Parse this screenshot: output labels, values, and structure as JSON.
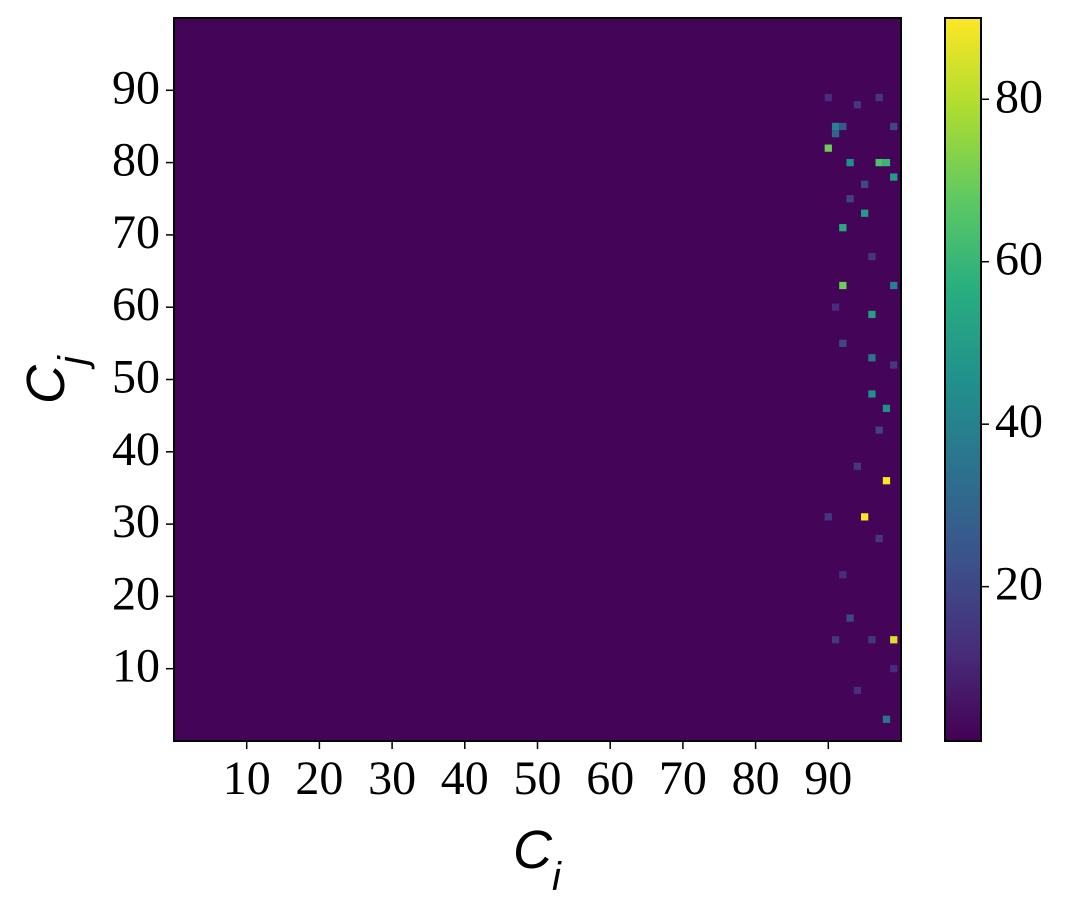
{
  "chart_data": {
    "type": "heatmap",
    "xlabel": "C_i",
    "ylabel": "C_j",
    "xlim": [
      0,
      100
    ],
    "ylim": [
      0,
      100
    ],
    "xticks": [
      10,
      20,
      30,
      40,
      50,
      60,
      70,
      80,
      90
    ],
    "yticks": [
      10,
      20,
      30,
      40,
      50,
      60,
      70,
      80,
      90
    ],
    "colormap": "viridis",
    "clim": [
      1,
      90
    ],
    "cbar_ticks": [
      20,
      40,
      60,
      80
    ],
    "background": 2,
    "cells": [
      [
        99,
        14,
        85
      ],
      [
        95,
        31,
        90
      ],
      [
        98,
        36,
        90
      ],
      [
        92,
        63,
        70
      ],
      [
        92,
        71,
        55
      ],
      [
        95,
        73,
        50
      ],
      [
        90,
        82,
        70
      ],
      [
        97,
        80,
        65
      ],
      [
        98,
        80,
        60
      ],
      [
        93,
        80,
        45
      ],
      [
        99,
        78,
        50
      ],
      [
        96,
        59,
        50
      ],
      [
        96,
        48,
        45
      ],
      [
        98,
        46,
        45
      ],
      [
        96,
        53,
        35
      ],
      [
        91,
        85,
        40
      ],
      [
        99,
        63,
        40
      ],
      [
        98,
        3,
        35
      ],
      [
        91,
        84,
        30
      ],
      [
        92,
        85,
        25
      ],
      [
        94,
        88,
        15
      ],
      [
        97,
        89,
        15
      ],
      [
        90,
        89,
        12
      ],
      [
        99,
        85,
        20
      ],
      [
        95,
        77,
        20
      ],
      [
        93,
        75,
        18
      ],
      [
        96,
        67,
        15
      ],
      [
        91,
        60,
        12
      ],
      [
        92,
        55,
        20
      ],
      [
        99,
        52,
        15
      ],
      [
        97,
        43,
        18
      ],
      [
        94,
        38,
        15
      ],
      [
        90,
        31,
        15
      ],
      [
        97,
        28,
        15
      ],
      [
        93,
        17,
        20
      ],
      [
        91,
        14,
        15
      ],
      [
        96,
        14,
        15
      ],
      [
        99,
        10,
        12
      ],
      [
        94,
        7,
        12
      ],
      [
        92,
        23,
        12
      ]
    ]
  }
}
